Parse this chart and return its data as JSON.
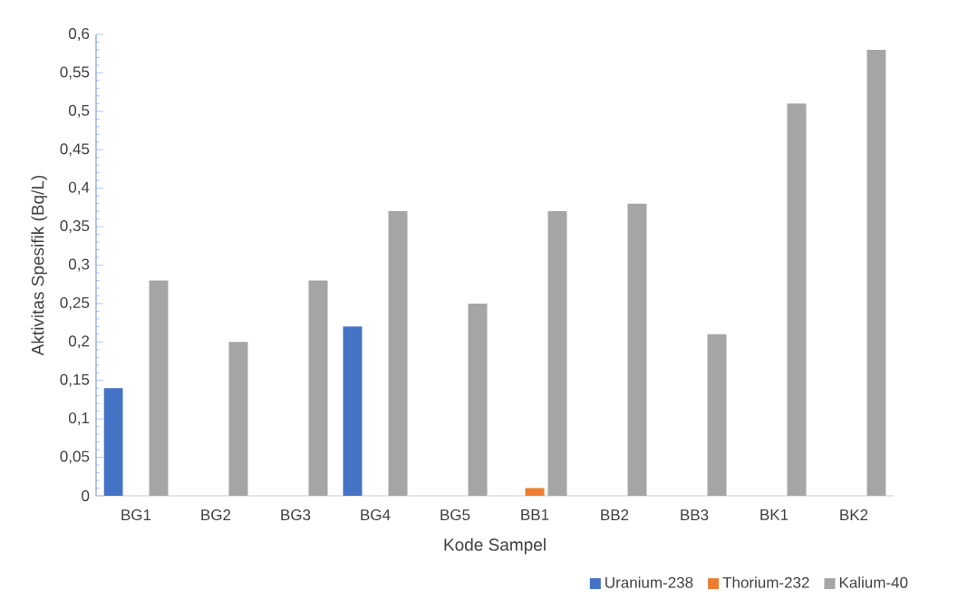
{
  "chart_data": {
    "type": "bar",
    "xlabel": "Kode Sampel",
    "ylabel": "Aktivitas Spesifik (Bq/L)",
    "categories": [
      "BG1",
      "BG2",
      "BG3",
      "BG4",
      "BG5",
      "BB1",
      "BB2",
      "BB3",
      "BK1",
      "BK2"
    ],
    "series": [
      {
        "name": "Uranium-238",
        "color": "#4472c4",
        "values": [
          0.14,
          0,
          0,
          0.22,
          0,
          0,
          0,
          0,
          0,
          0
        ]
      },
      {
        "name": "Thorium-232",
        "color": "#ed7d31",
        "values": [
          0,
          0,
          0,
          0,
          0,
          0.01,
          0,
          0,
          0,
          0
        ]
      },
      {
        "name": "Kalium-40",
        "color": "#a5a5a5",
        "values": [
          0.28,
          0.2,
          0.28,
          0.37,
          0.25,
          0.37,
          0.38,
          0.21,
          0.51,
          0.58
        ]
      }
    ],
    "ylim": [
      0,
      0.6
    ],
    "yticks": [
      {
        "value": 0,
        "label": "0"
      },
      {
        "value": 0.05,
        "label": "0,05"
      },
      {
        "value": 0.1,
        "label": "0,1"
      },
      {
        "value": 0.15,
        "label": "0,15"
      },
      {
        "value": 0.2,
        "label": "0,2"
      },
      {
        "value": 0.25,
        "label": "0,25"
      },
      {
        "value": 0.3,
        "label": "0,3"
      },
      {
        "value": 0.35,
        "label": "0,35"
      },
      {
        "value": 0.4,
        "label": "0,4"
      },
      {
        "value": 0.45,
        "label": "0,45"
      },
      {
        "value": 0.5,
        "label": "0,5"
      },
      {
        "value": 0.55,
        "label": "0,55"
      },
      {
        "value": 0.6,
        "label": "0,6"
      }
    ],
    "grid": false,
    "legend": "bottom right"
  }
}
